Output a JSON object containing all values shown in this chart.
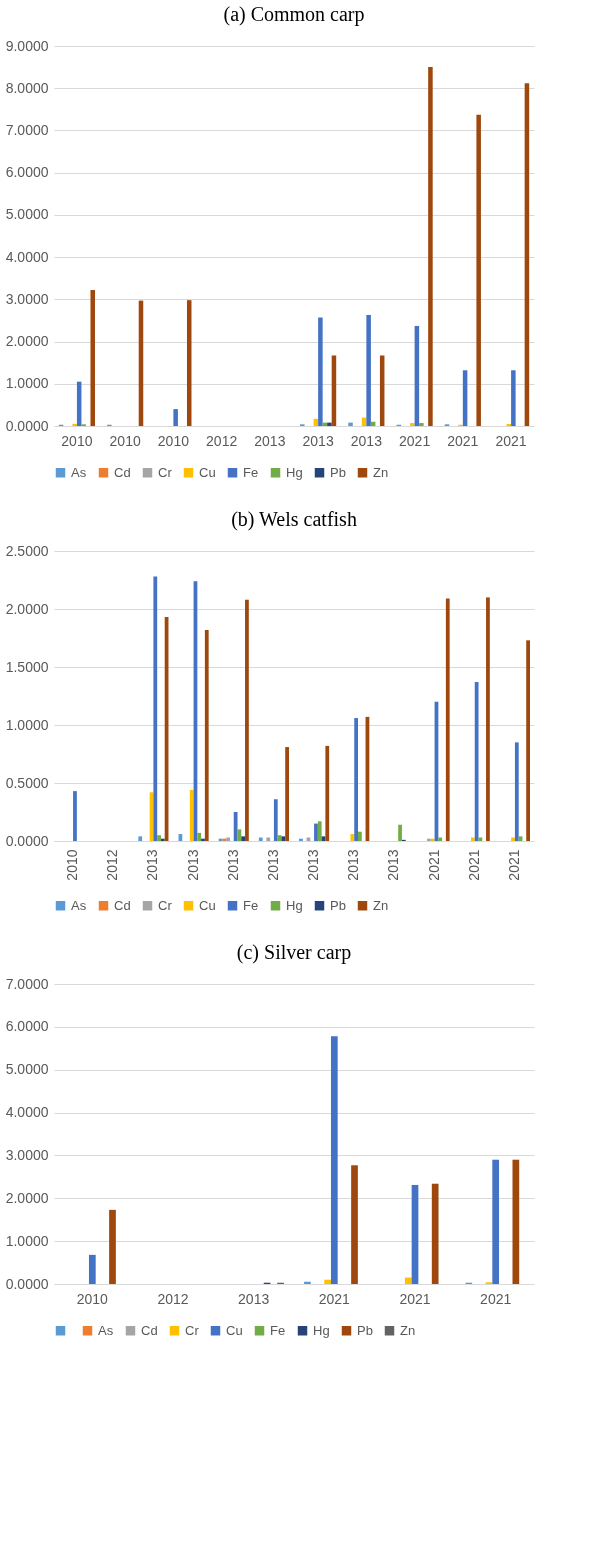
{
  "chart_data": [
    {
      "type": "bar",
      "title": "(a) Common carp",
      "categories": [
        "2010",
        "2010",
        "2010",
        "2012",
        "2013",
        "2013",
        "2013",
        "2021",
        "2021",
        "2021"
      ],
      "ylim": [
        0,
        9
      ],
      "yticks": [
        {
          "value": 0,
          "label": "0.0000"
        },
        {
          "value": 1,
          "label": "1.0000"
        },
        {
          "value": 2,
          "label": "2.0000"
        },
        {
          "value": 3,
          "label": "3.0000"
        },
        {
          "value": 4,
          "label": "4.0000"
        },
        {
          "value": 5,
          "label": "5.0000"
        },
        {
          "value": 6,
          "label": "6.0000"
        },
        {
          "value": 7,
          "label": "7.0000"
        },
        {
          "value": 8,
          "label": "8.0000"
        },
        {
          "value": 9,
          "label": "9.0000"
        }
      ],
      "grid": "y",
      "legend": "bottom",
      "series": [
        {
          "name": "As",
          "color": "#5b9bd5",
          "values": [
            0.03,
            0.03,
            0,
            0,
            0,
            0.04,
            0.08,
            0.03,
            0.04,
            0
          ]
        },
        {
          "name": "Cd",
          "color": "#ed7d31",
          "values": [
            0,
            0,
            0,
            0,
            0,
            0,
            0,
            0,
            0,
            0
          ]
        },
        {
          "name": "Cr",
          "color": "#a5a5a5",
          "values": [
            0,
            0,
            0,
            0,
            null,
            0,
            0,
            0,
            0,
            0
          ]
        },
        {
          "name": "Cu",
          "color": "#ffc000",
          "values": [
            0.05,
            0,
            0,
            0,
            0,
            0.17,
            0.2,
            0.07,
            0.03,
            0.05
          ]
        },
        {
          "name": "Fe",
          "color": "#4472c4",
          "values": [
            1.05,
            0,
            0.4,
            0,
            0,
            2.57,
            2.63,
            2.37,
            1.32,
            1.32
          ]
        },
        {
          "name": "Hg",
          "color": "#70ad47",
          "values": [
            0.04,
            0,
            0,
            0,
            0,
            0.08,
            0.1,
            0.07,
            0,
            0
          ]
        },
        {
          "name": "Pb",
          "color": "#264478",
          "values": [
            0,
            0,
            0,
            0,
            0,
            0.08,
            0,
            0,
            0,
            0
          ]
        },
        {
          "name": "Zn",
          "color": "#9e480e",
          "values": [
            3.22,
            2.97,
            2.98,
            0,
            0,
            1.67,
            1.67,
            8.5,
            7.37,
            8.12
          ]
        }
      ]
    },
    {
      "type": "bar",
      "title": "(b) Wels catfish",
      "categories": [
        "2010",
        "2012",
        "2013",
        "2013",
        "2013",
        "2013",
        "2013",
        "2013",
        "2013",
        "2021",
        "2021",
        "2021"
      ],
      "ylim": [
        0,
        2.5
      ],
      "yticks": [
        {
          "value": 0,
          "label": "0.0000"
        },
        {
          "value": 0.5,
          "label": "0.5000"
        },
        {
          "value": 1,
          "label": "1.0000"
        },
        {
          "value": 1.5,
          "label": "1.5000"
        },
        {
          "value": 2,
          "label": "2.0000"
        },
        {
          "value": 2.5,
          "label": "2.5000"
        }
      ],
      "grid": "y",
      "legend": "bottom",
      "series": [
        {
          "name": "As",
          "color": "#5b9bd5",
          "values": [
            0,
            0,
            0.04,
            0.06,
            0.02,
            0.03,
            0.02,
            0,
            0,
            0,
            0,
            0
          ]
        },
        {
          "name": "Cd",
          "color": "#ed7d31",
          "values": [
            0,
            0,
            0,
            0,
            0.02,
            0,
            0,
            0,
            0,
            0,
            0,
            0
          ]
        },
        {
          "name": "Cr",
          "color": "#a5a5a5",
          "values": [
            0,
            null,
            null,
            null,
            0.03,
            0.03,
            0.03,
            0,
            0,
            0.02,
            0,
            0
          ]
        },
        {
          "name": "Cu",
          "color": "#ffc000",
          "values": [
            0,
            0,
            0.42,
            0.44,
            0,
            0,
            0,
            0.06,
            0,
            0.02,
            0.03,
            0.03
          ]
        },
        {
          "name": "Fe",
          "color": "#4472c4",
          "values": [
            0.43,
            0,
            2.28,
            2.24,
            0.25,
            0.36,
            0.15,
            1.06,
            0,
            1.2,
            1.37,
            0.85
          ]
        },
        {
          "name": "Hg",
          "color": "#70ad47",
          "values": [
            0,
            0,
            0.05,
            0.07,
            0.1,
            0.05,
            0.17,
            0.08,
            0.14,
            0.03,
            0.03,
            0.04
          ]
        },
        {
          "name": "Pb",
          "color": "#264478",
          "values": [
            0,
            0,
            0.02,
            0.02,
            0.04,
            0.04,
            0.04,
            0,
            0.01,
            0,
            0,
            0
          ]
        },
        {
          "name": "Zn",
          "color": "#9e480e",
          "values": [
            0,
            0,
            1.93,
            1.82,
            2.08,
            0.81,
            0.82,
            1.07,
            0,
            2.09,
            2.1,
            1.73
          ]
        }
      ]
    },
    {
      "type": "bar",
      "title": "(c) Silver carp",
      "categories": [
        "2010",
        "2012",
        "2013",
        "2021",
        "2021",
        "2021"
      ],
      "ylim": [
        0,
        7
      ],
      "yticks": [
        {
          "value": 0,
          "label": "0.0000"
        },
        {
          "value": 1,
          "label": "1.0000"
        },
        {
          "value": 2,
          "label": "2.0000"
        },
        {
          "value": 3,
          "label": "3.0000"
        },
        {
          "value": 4,
          "label": "4.0000"
        },
        {
          "value": 5,
          "label": "5.0000"
        },
        {
          "value": 6,
          "label": "6.0000"
        },
        {
          "value": 7,
          "label": "7.0000"
        }
      ],
      "grid": "y",
      "legend": "bottom",
      "series": [
        {
          "color": "#5b9bd5",
          "values": [
            0,
            0,
            0,
            0.05,
            0,
            0.03
          ]
        },
        {
          "name": "As",
          "color": "#ed7d31",
          "values": [
            0,
            0,
            0,
            0,
            0,
            0
          ]
        },
        {
          "name": "Cd",
          "color": "#a5a5a5",
          "values": [
            0,
            0,
            0,
            0,
            0,
            0
          ]
        },
        {
          "name": "Cr",
          "color": "#ffc000",
          "values": [
            0,
            0,
            0,
            0.1,
            0.15,
            0.04
          ]
        },
        {
          "name": "Cu",
          "color": "#4472c4",
          "values": [
            0.68,
            0,
            0,
            5.78,
            2.31,
            2.9
          ]
        },
        {
          "name": "Fe",
          "color": "#70ad47",
          "values": [
            0,
            0,
            0,
            0,
            0,
            0
          ]
        },
        {
          "name": "Hg",
          "color": "#264478",
          "values": [
            0,
            0,
            0.03,
            0,
            0,
            0
          ]
        },
        {
          "name": "Pb",
          "color": "#9e480e",
          "values": [
            1.73,
            0,
            0,
            2.77,
            2.34,
            2.9
          ]
        },
        {
          "name": "Zn",
          "color": "#636363",
          "values": [
            0,
            0,
            0.03,
            0,
            0,
            0
          ]
        }
      ]
    }
  ]
}
